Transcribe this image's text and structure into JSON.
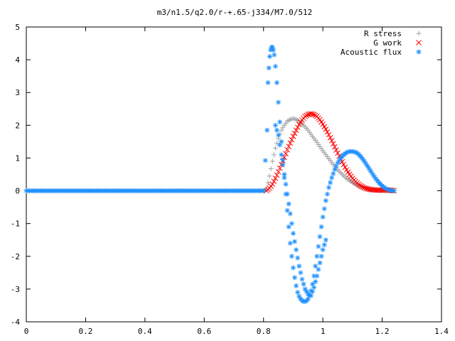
{
  "chart_data": {
    "type": "scatter",
    "title": "m3/n1.5/q2.0/r-+.65-j334/M7.0/512",
    "xlabel": "",
    "ylabel": "",
    "xlim": [
      0,
      1.4
    ],
    "ylim": [
      -4,
      5
    ],
    "grid": false,
    "legend_position": "top-right",
    "x_ticks": [
      0,
      0.2,
      0.4,
      0.6,
      0.8,
      1,
      1.2,
      1.4
    ],
    "x_tick_labels": [
      "0",
      "0.2",
      "0.4",
      "0.6",
      "0.8",
      "1",
      "1.2",
      "1.4"
    ],
    "y_ticks": [
      -4,
      -3,
      -2,
      -1,
      0,
      1,
      2,
      3,
      4,
      5
    ],
    "y_tick_labels": [
      "-4",
      "-3",
      "-2",
      "-1",
      "0",
      "1",
      "2",
      "3",
      "4",
      "5"
    ],
    "series": [
      {
        "name": "R stress",
        "marker": "plus",
        "color": "#a0a0a0",
        "x": [
          0,
          0.1,
          0.2,
          0.3,
          0.4,
          0.5,
          0.6,
          0.7,
          0.8,
          0.81,
          0.82,
          0.83,
          0.84,
          0.85,
          0.86,
          0.87,
          0.88,
          0.89,
          0.9,
          0.91,
          0.92,
          0.93,
          0.94,
          0.95,
          0.96,
          0.97,
          0.98,
          0.99,
          1.0,
          1.01,
          1.02,
          1.03,
          1.04,
          1.05,
          1.06,
          1.07,
          1.08,
          1.09,
          1.1,
          1.11,
          1.12,
          1.13,
          1.14,
          1.15,
          1.16,
          1.17,
          1.18,
          1.19,
          1.2,
          1.21,
          1.22,
          1.23,
          1.24
        ],
        "y": [
          0,
          0,
          0,
          0,
          0,
          0,
          0,
          0,
          0,
          0.05,
          0.45,
          0.9,
          1.3,
          1.6,
          1.85,
          2.0,
          2.12,
          2.18,
          2.2,
          2.18,
          2.12,
          2.05,
          1.95,
          1.85,
          1.72,
          1.6,
          1.48,
          1.35,
          1.22,
          1.1,
          0.98,
          0.86,
          0.75,
          0.64,
          0.55,
          0.46,
          0.38,
          0.31,
          0.25,
          0.2,
          0.15,
          0.11,
          0.08,
          0.06,
          0.04,
          0.03,
          0.02,
          0.01,
          0.01,
          0.01,
          0.0,
          0.0,
          0.0
        ]
      },
      {
        "name": "G work",
        "marker": "cross",
        "color": "#ff0000",
        "x": [
          0.81,
          0.82,
          0.83,
          0.84,
          0.85,
          0.86,
          0.87,
          0.88,
          0.89,
          0.9,
          0.91,
          0.92,
          0.93,
          0.94,
          0.95,
          0.96,
          0.97,
          0.98,
          0.99,
          1.0,
          1.01,
          1.02,
          1.03,
          1.04,
          1.05,
          1.06,
          1.07,
          1.08,
          1.09,
          1.1,
          1.11,
          1.12,
          1.13,
          1.14,
          1.15,
          1.16,
          1.17,
          1.18,
          1.19,
          1.2,
          1.21,
          1.22,
          1.23,
          1.24
        ],
        "y": [
          0.0,
          0.08,
          0.2,
          0.38,
          0.58,
          0.8,
          1.02,
          1.25,
          1.46,
          1.66,
          1.85,
          2.02,
          2.16,
          2.27,
          2.33,
          2.35,
          2.33,
          2.27,
          2.17,
          2.03,
          1.88,
          1.71,
          1.53,
          1.34,
          1.15,
          0.97,
          0.8,
          0.64,
          0.5,
          0.38,
          0.28,
          0.2,
          0.14,
          0.09,
          0.06,
          0.04,
          0.03,
          0.02,
          0.02,
          0.02,
          0.02,
          0.02,
          0.02,
          0.0
        ]
      },
      {
        "name": "Acoustic flux",
        "marker": "star",
        "color": "#1e90ff",
        "x": [
          0.0,
          0.1,
          0.2,
          0.3,
          0.4,
          0.5,
          0.6,
          0.7,
          0.8,
          0.812,
          0.815,
          0.818,
          0.821,
          0.824,
          0.827,
          0.83,
          0.833,
          0.836,
          0.84,
          0.845,
          0.85,
          0.855,
          0.86,
          0.865,
          0.87,
          0.875,
          0.88,
          0.885,
          0.89,
          0.895,
          0.9,
          0.905,
          0.91,
          0.915,
          0.92,
          0.925,
          0.93,
          0.935,
          0.94,
          0.945,
          0.95,
          0.955,
          0.96,
          0.965,
          0.97,
          0.975,
          0.98,
          0.985,
          0.99,
          0.995,
          1.0,
          1.005,
          1.01,
          1.015,
          1.02,
          1.03,
          1.04,
          1.05,
          1.06,
          1.07,
          1.08,
          1.09,
          1.1,
          1.11,
          1.12,
          1.13,
          1.14,
          1.15,
          1.16,
          1.17,
          1.18,
          1.19,
          1.2,
          1.21,
          1.22,
          1.23,
          1.24,
          0.84,
          0.85,
          0.86,
          0.87,
          0.88,
          0.89,
          0.9,
          0.91,
          0.92,
          0.93,
          0.94,
          0.95,
          0.96,
          0.97,
          0.98,
          0.99,
          1.0,
          1.01
        ],
        "y": [
          0,
          0,
          0,
          0,
          0,
          0,
          0,
          0,
          0,
          1.85,
          3.3,
          3.75,
          4.1,
          4.3,
          4.38,
          4.38,
          4.3,
          4.15,
          3.8,
          3.3,
          2.7,
          2.1,
          1.5,
          0.95,
          0.4,
          -0.1,
          -0.6,
          -1.1,
          -1.6,
          -2.0,
          -2.35,
          -2.65,
          -2.9,
          -3.1,
          -3.22,
          -3.3,
          -3.35,
          -3.38,
          -3.38,
          -3.36,
          -3.3,
          -3.2,
          -3.05,
          -2.85,
          -2.6,
          -2.3,
          -2.0,
          -1.7,
          -1.4,
          -1.1,
          -0.8,
          -0.55,
          -0.3,
          -0.1,
          0.1,
          0.4,
          0.65,
          0.85,
          1.0,
          1.1,
          1.17,
          1.2,
          1.2,
          1.18,
          1.12,
          1.02,
          0.9,
          0.76,
          0.62,
          0.48,
          0.35,
          0.24,
          0.15,
          0.08,
          0.03,
          0.01,
          0.0,
          2.0,
          1.7,
          1.1,
          0.5,
          -0.1,
          -0.7,
          -1.3,
          -1.8,
          -2.3,
          -2.7,
          -3.0,
          -3.15,
          -3.2,
          -2.95,
          -2.6,
          -2.2,
          -1.8,
          -1.5
        ]
      }
    ]
  }
}
